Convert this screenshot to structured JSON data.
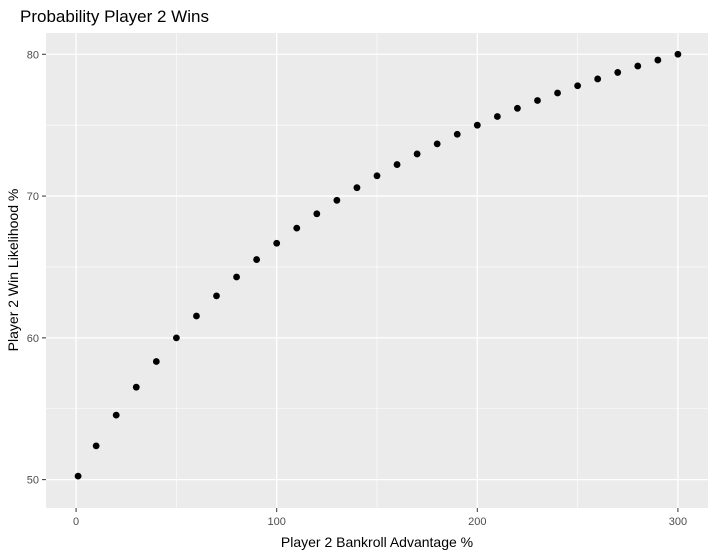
{
  "chart_data": {
    "type": "scatter",
    "title": "Probability Player 2 Wins",
    "xlabel": "Player 2 Bankroll Advantage %",
    "ylabel": "Player 2 Win Likelihood %",
    "xlim": [
      -15,
      315
    ],
    "ylim": [
      48,
      81.5
    ],
    "x_ticks": [
      0,
      100,
      200,
      300
    ],
    "x_tick_labels": [
      "0",
      "100",
      "200",
      "300"
    ],
    "y_ticks": [
      50,
      60,
      70,
      80
    ],
    "y_tick_labels": [
      "50",
      "60",
      "70",
      "80"
    ],
    "grid": true,
    "legend": "none",
    "point_color": "#000000",
    "panel_background": "#ebebeb",
    "grid_color": "#ffffff",
    "series": [
      {
        "x": [
          1,
          10,
          20,
          30,
          40,
          50,
          60,
          70,
          80,
          90,
          100,
          110,
          120,
          130,
          140,
          150,
          160,
          170,
          180,
          190,
          200,
          210,
          220,
          230,
          240,
          250,
          260,
          270,
          280,
          290,
          300
        ],
        "y": [
          50.25,
          52.38,
          54.55,
          56.52,
          58.33,
          60.0,
          61.54,
          62.96,
          64.29,
          65.52,
          66.67,
          67.74,
          68.75,
          69.7,
          70.59,
          71.43,
          72.22,
          72.97,
          73.68,
          74.36,
          75.0,
          75.61,
          76.19,
          76.74,
          77.27,
          77.78,
          78.26,
          78.72,
          79.17,
          79.59,
          80.0
        ]
      }
    ]
  }
}
